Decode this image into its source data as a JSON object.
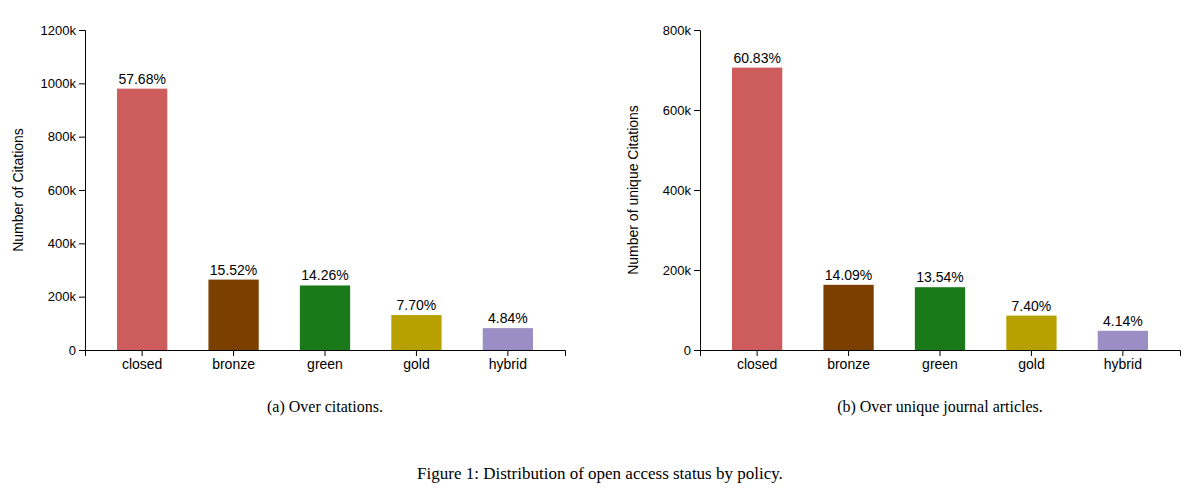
{
  "title": "Figure 1: Distribution of open access status by policy.",
  "chart_data": [
    {
      "type": "bar",
      "categories": [
        "closed",
        "bronze",
        "green",
        "gold",
        "hybrid"
      ],
      "values": [
        980000,
        264000,
        242000,
        131000,
        82000
      ],
      "percentages": [
        "57.68%",
        "15.52%",
        "14.26%",
        "7.70%",
        "4.84%"
      ],
      "colors": [
        "#cd5c5c",
        "#7b3f00",
        "#1a7a1a",
        "#b8a000",
        "#9b8ec4"
      ],
      "ylabel": "Number of Citations",
      "ylim": [
        0,
        1200000
      ],
      "yticks": [
        0,
        {
          "value": 200000,
          "label": "200k"
        },
        {
          "value": 400000,
          "label": "400k"
        },
        {
          "value": 600000,
          "label": "600k"
        },
        {
          "value": 800000,
          "label": "800k"
        },
        {
          "value": 1000000,
          "label": "1000k"
        },
        {
          "value": 1200000,
          "label": "1200k"
        }
      ],
      "subtitle": "(a) Over citations.",
      "grid": false
    },
    {
      "type": "bar",
      "categories": [
        "closed",
        "bronze",
        "green",
        "gold",
        "hybrid"
      ],
      "values": [
        706000,
        163000,
        157000,
        86000,
        48000
      ],
      "percentages": [
        "60.83%",
        "14.09%",
        "13.54%",
        "7.40%",
        "4.14%"
      ],
      "colors": [
        "#cd5c5c",
        "#7b3f00",
        "#1a7a1a",
        "#b8a000",
        "#9b8ec4"
      ],
      "ylabel": "Number of unique Citations",
      "ylim": [
        0,
        800000
      ],
      "yticks": [
        0,
        {
          "value": 200000,
          "label": "200k"
        },
        {
          "value": 400000,
          "label": "400k"
        },
        {
          "value": 600000,
          "label": "600k"
        },
        {
          "value": 800000,
          "label": "800k"
        }
      ],
      "subtitle": "(b) Over unique journal articles.",
      "grid": false
    }
  ]
}
